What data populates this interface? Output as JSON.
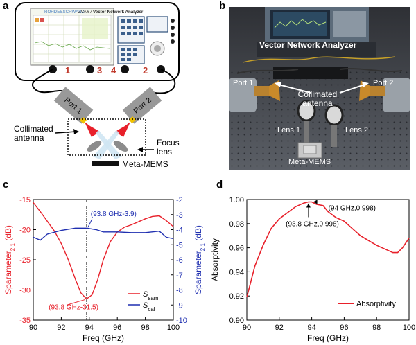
{
  "panels": {
    "a": {
      "letter": "a",
      "vna_brand": "ROHDE&SCHWARZ",
      "vna_model": "ZVA 67",
      "vna_title": "Vector Network Analyzer",
      "port_numbers": [
        "1",
        "3",
        "4",
        "2"
      ],
      "port1_label": "Port 1",
      "port2_label": "Port 2",
      "antenna_label": "Collimated antenna",
      "lens_label": "Focus lens",
      "mems_label": "Meta-MEMS"
    },
    "b": {
      "letter": "b",
      "vna_label": "Vector Network Analyzer",
      "port1_label": "Port 1",
      "port2_label": "Port 2",
      "antenna_label": "Collimated antenna",
      "lens1_label": "Lens 1",
      "lens2_label": "Lens 2",
      "mems_label": "Meta-MEMS"
    },
    "c": {
      "letter": "c"
    },
    "d": {
      "letter": "d"
    }
  },
  "chart_data": [
    {
      "type": "line",
      "panel": "c",
      "xlabel": "Freq (GHz)",
      "ylabel_left": "Sparameter21 (dB)",
      "ylabel_right": "Sparameter21 (dB)",
      "xlim": [
        90,
        100
      ],
      "ylim_left": [
        -35,
        -15
      ],
      "ylim_right": [
        -10,
        -2
      ],
      "xticks": [
        90,
        92,
        94,
        96,
        98,
        100
      ],
      "yticks_left": [
        -15,
        -20,
        -25,
        -30,
        -35
      ],
      "yticks_right": [
        -2,
        -3,
        -4,
        -5,
        -6,
        -7,
        -8,
        -9,
        -10
      ],
      "left_color": "#e8202a",
      "right_color": "#1f2fb0",
      "series": [
        {
          "name": "S_sam",
          "axis": "left",
          "color": "#e8202a",
          "x": [
            90,
            90.5,
            91,
            91.5,
            92,
            92.5,
            93,
            93.4,
            93.8,
            94.2,
            94.6,
            95,
            95.5,
            96,
            96.5,
            97,
            97.5,
            98,
            98.5,
            99,
            99.5,
            100
          ],
          "y": [
            -15.5,
            -17,
            -18.6,
            -20.2,
            -22.3,
            -25,
            -28.2,
            -30.5,
            -31.5,
            -30.8,
            -28.3,
            -25,
            -22,
            -20.4,
            -19.6,
            -19.2,
            -18.7,
            -18.2,
            -17.8,
            -17.7,
            -18.5,
            -19.5
          ]
        },
        {
          "name": "S_cal",
          "axis": "right",
          "color": "#1f2fb0",
          "x": [
            90,
            90.5,
            91,
            92,
            93,
            93.8,
            94.5,
            95,
            96,
            97,
            98,
            99,
            99.5,
            100
          ],
          "y": [
            -4.5,
            -4.7,
            -4.3,
            -4.05,
            -3.9,
            -3.9,
            -4.0,
            -4.15,
            -4.15,
            -4.2,
            -4.2,
            -4.1,
            -4.5,
            -4.6
          ]
        }
      ],
      "annotations": [
        {
          "text": "(93.8 GHz-3.9)",
          "color": "#1f2fb0"
        },
        {
          "text": "(93.8 GHz-31.5)",
          "color": "#e8202a"
        }
      ],
      "marker_line_x": 93.8,
      "legend": {
        "placement": "bottom-right",
        "items": [
          {
            "main": "S",
            "sub": "sam"
          },
          {
            "main": "S",
            "sub": "cal"
          }
        ]
      },
      "grid": false
    },
    {
      "type": "line",
      "panel": "d",
      "xlabel": "Freq (GHz)",
      "ylabel": "Absorptivity",
      "xlim": [
        90,
        100
      ],
      "ylim": [
        0.9,
        1.0
      ],
      "xticks": [
        90,
        92,
        94,
        96,
        98,
        100
      ],
      "yticks": [
        1.0,
        0.98,
        0.96,
        0.94,
        0.92,
        0.9
      ],
      "ytick_labels": [
        "1.00",
        "0.98",
        "0.96",
        "0.94",
        "0.92",
        "0.90"
      ],
      "series": [
        {
          "name": "Absorptivity",
          "color": "#e8202a",
          "x": [
            90,
            90.5,
            91,
            91.5,
            92,
            92.5,
            93,
            93.5,
            93.8,
            94,
            94.3,
            94.7,
            95,
            95.5,
            96,
            96.5,
            97,
            97.5,
            98,
            98.5,
            99,
            99.3,
            99.6,
            100
          ],
          "y": [
            0.919,
            0.945,
            0.962,
            0.976,
            0.984,
            0.989,
            0.994,
            0.997,
            0.998,
            0.998,
            0.996,
            0.995,
            0.99,
            0.985,
            0.982,
            0.976,
            0.97,
            0.966,
            0.962,
            0.959,
            0.956,
            0.956,
            0.96,
            0.968
          ]
        }
      ],
      "annotations": [
        {
          "text": "(94 GHz,0.998)"
        },
        {
          "text": "(93.8 GHz,0.998)"
        }
      ],
      "legend": {
        "placement": "bottom-right",
        "items": [
          "Absorptivity"
        ]
      },
      "grid": false
    }
  ]
}
